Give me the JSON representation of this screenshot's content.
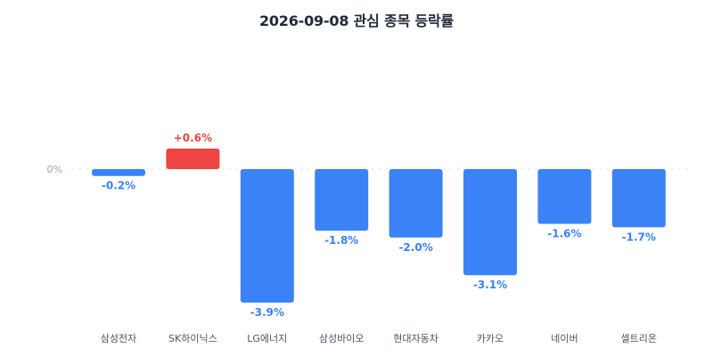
{
  "chart_data": {
    "type": "bar",
    "title": "2026-09-08 관심 종목 등락률",
    "categories": [
      "삼성전자",
      "SK하이닉스",
      "LG에너지",
      "삼성바이오",
      "현대자동차",
      "카카오",
      "네이버",
      "셀트리온"
    ],
    "values": [
      -0.2,
      0.6,
      -3.9,
      -1.8,
      -2.0,
      -3.1,
      -1.6,
      -1.7
    ],
    "value_labels": [
      "-0.2%",
      "+0.6%",
      "-3.9%",
      "-1.8%",
      "-2.0%",
      "-3.1%",
      "-1.6%",
      "-1.7%"
    ],
    "zero_tick_label": "0%",
    "xlabel": "",
    "ylabel": "",
    "grid": false,
    "colors": {
      "positive": "#ef4444",
      "negative": "#3b82f6",
      "zero_line": "#e5e7eb"
    }
  }
}
